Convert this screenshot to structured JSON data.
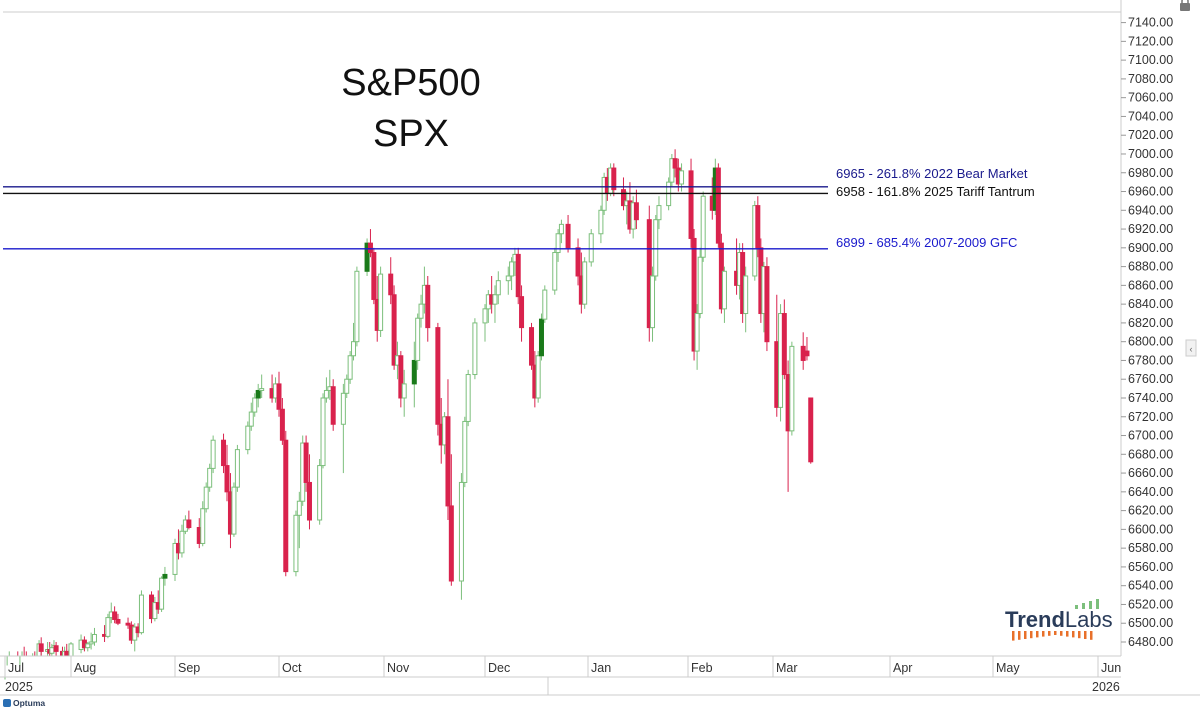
{
  "chart_data": {
    "type": "candlestick",
    "title": "S&P500",
    "subtitle": "SPX",
    "ylim": [
      6460,
      7160
    ],
    "y_ticks": [
      6480,
      6500,
      6520,
      6540,
      6560,
      6580,
      6600,
      6620,
      6640,
      6660,
      6680,
      6700,
      6720,
      6740,
      6760,
      6780,
      6800,
      6820,
      6840,
      6860,
      6880,
      6900,
      6920,
      6940,
      6960,
      6980,
      7000,
      7020,
      7040,
      7060,
      7080,
      7100,
      7120,
      7140
    ],
    "y_tick_labels": [
      "6480.00",
      "6500.00",
      "6520.00",
      "6540.00",
      "6560.00",
      "6580.00",
      "6600.00",
      "6620.00",
      "6640.00",
      "6660.00",
      "6680.00",
      "6700.00",
      "6720.00",
      "6740.00",
      "6760.00",
      "6780.00",
      "6800.00",
      "6820.00",
      "6840.00",
      "6860.00",
      "6880.00",
      "6900.00",
      "6920.00",
      "6940.00",
      "6960.00",
      "6980.00",
      "7000.00",
      "7020.00",
      "7040.00",
      "7060.00",
      "7080.00",
      "7100.00",
      "7120.00",
      "7140.00"
    ],
    "x_months": [
      "Jul",
      "Aug",
      "Sep",
      "Oct",
      "Nov",
      "Dec",
      "Jan",
      "Feb",
      "Mar",
      "Apr",
      "May",
      "Jun"
    ],
    "x_years": [
      "2025",
      "2026"
    ],
    "colors": {
      "up": "#7cbf7c",
      "up_fill": "#ffffff",
      "down": "#d9224d",
      "up_solid": "#1a7a1a",
      "grid": "#e6e6e6",
      "axis": "#cccccc"
    },
    "levels": [
      {
        "value": 6965,
        "label": "6965 - 261.8% 2022 Bear Market",
        "color": "#1a1a8c"
      },
      {
        "value": 6958,
        "label": "6958 - 161.8% 2025 Tariff Tantrum",
        "color": "#111111"
      },
      {
        "value": 6899,
        "label": "6899 - 685.4% 2007-2009 GFC",
        "color": "#1a1acc"
      }
    ],
    "candles": [
      [
        "2025-07-01",
        6410,
        6440,
        6405,
        6430
      ],
      [
        "2025-07-02",
        6428,
        6455,
        6420,
        6445
      ],
      [
        "2025-07-03",
        6440,
        6470,
        6435,
        6465
      ],
      [
        "2025-07-07",
        6460,
        6470,
        6440,
        6445
      ],
      [
        "2025-07-08",
        6445,
        6455,
        6440,
        6448
      ],
      [
        "2025-07-09",
        6448,
        6470,
        6445,
        6465
      ],
      [
        "2025-07-10",
        6465,
        6475,
        6455,
        6460
      ],
      [
        "2025-07-11",
        6460,
        6470,
        6450,
        6455
      ],
      [
        "2025-07-14",
        6455,
        6468,
        6450,
        6462
      ],
      [
        "2025-07-15",
        6462,
        6470,
        6445,
        6448
      ],
      [
        "2025-07-16",
        6448,
        6470,
        6440,
        6465
      ],
      [
        "2025-07-17",
        6465,
        6482,
        6460,
        6478
      ],
      [
        "2025-07-18",
        6478,
        6485,
        6465,
        6470
      ],
      [
        "2025-07-21",
        6470,
        6480,
        6465,
        6472
      ],
      [
        "2025-07-22",
        6472,
        6480,
        6462,
        6468
      ],
      [
        "2025-07-23",
        6468,
        6478,
        6460,
        6474
      ],
      [
        "2025-07-24",
        6474,
        6482,
        6468,
        6476
      ],
      [
        "2025-07-25",
        6476,
        6480,
        6465,
        6470
      ],
      [
        "2025-07-28",
        6470,
        6475,
        6455,
        6458
      ],
      [
        "2025-07-29",
        6458,
        6475,
        6455,
        6470
      ],
      [
        "2025-07-30",
        6470,
        6478,
        6455,
        6460
      ],
      [
        "2025-07-31",
        6460,
        6472,
        6445,
        6448
      ],
      [
        "2025-08-01",
        6448,
        6480,
        6445,
        6478
      ],
      [
        "2025-08-04",
        6472,
        6488,
        6468,
        6482
      ],
      [
        "2025-08-05",
        6482,
        6486,
        6470,
        6474
      ],
      [
        "2025-08-06",
        6474,
        6480,
        6470,
        6478
      ],
      [
        "2025-08-07",
        6478,
        6490,
        6472,
        6480
      ],
      [
        "2025-08-08",
        6480,
        6495,
        6476,
        6488
      ],
      [
        "2025-08-11",
        6488,
        6498,
        6480,
        6486
      ],
      [
        "2025-08-12",
        6486,
        6510,
        6484,
        6506
      ],
      [
        "2025-08-13",
        6506,
        6522,
        6500,
        6512
      ],
      [
        "2025-08-14",
        6512,
        6518,
        6500,
        6504
      ],
      [
        "2025-08-15",
        6504,
        6510,
        6498,
        6500
      ],
      [
        "2025-08-18",
        6500,
        6506,
        6494,
        6498
      ],
      [
        "2025-08-19",
        6498,
        6502,
        6478,
        6482
      ],
      [
        "2025-08-20",
        6482,
        6500,
        6470,
        6496
      ],
      [
        "2025-08-21",
        6496,
        6500,
        6485,
        6490
      ],
      [
        "2025-08-22",
        6490,
        6535,
        6488,
        6530
      ],
      [
        "2025-08-25",
        6530,
        6534,
        6500,
        6505
      ],
      [
        "2025-08-26",
        6505,
        6528,
        6502,
        6522
      ],
      [
        "2025-08-27",
        6522,
        6535,
        6510,
        6515
      ],
      [
        "2025-08-28",
        6515,
        6550,
        6512,
        6548
      ],
      [
        "2025-08-29",
        6548,
        6560,
        6540,
        6552
      ],
      [
        "2025-09-01",
        6552,
        6590,
        6545,
        6585
      ],
      [
        "2025-09-02",
        6585,
        6600,
        6568,
        6575
      ],
      [
        "2025-09-03",
        6575,
        6605,
        6570,
        6598
      ],
      [
        "2025-09-04",
        6598,
        6615,
        6595,
        6610
      ],
      [
        "2025-09-05",
        6610,
        6620,
        6600,
        6602
      ],
      [
        "2025-09-08",
        6602,
        6612,
        6580,
        6585
      ],
      [
        "2025-09-09",
        6585,
        6630,
        6582,
        6622
      ],
      [
        "2025-09-10",
        6622,
        6650,
        6618,
        6645
      ],
      [
        "2025-09-11",
        6645,
        6670,
        6640,
        6665
      ],
      [
        "2025-09-12",
        6665,
        6700,
        6660,
        6695
      ],
      [
        "2025-09-15",
        6695,
        6702,
        6660,
        6668
      ],
      [
        "2025-09-16",
        6668,
        6690,
        6630,
        6640
      ],
      [
        "2025-09-17",
        6640,
        6660,
        6580,
        6595
      ],
      [
        "2025-09-18",
        6595,
        6650,
        6592,
        6645
      ],
      [
        "2025-09-19",
        6645,
        6690,
        6640,
        6685
      ],
      [
        "2025-09-22",
        6685,
        6715,
        6680,
        6710
      ],
      [
        "2025-09-23",
        6710,
        6735,
        6705,
        6725
      ],
      [
        "2025-09-24",
        6725,
        6745,
        6720,
        6740
      ],
      [
        "2025-09-25",
        6740,
        6755,
        6730,
        6748
      ],
      [
        "2025-09-26",
        6748,
        6765,
        6740,
        6750
      ],
      [
        "2025-09-29",
        6750,
        6765,
        6735,
        6740
      ],
      [
        "2025-09-30",
        6740,
        6762,
        6735,
        6755
      ],
      [
        "2025-10-01",
        6755,
        6768,
        6720,
        6728
      ],
      [
        "2025-10-02",
        6728,
        6740,
        6690,
        6695
      ],
      [
        "2025-10-03",
        6695,
        6705,
        6550,
        6555
      ],
      [
        "2025-10-06",
        6555,
        6620,
        6550,
        6615
      ],
      [
        "2025-10-07",
        6615,
        6640,
        6580,
        6630
      ],
      [
        "2025-10-08",
        6630,
        6700,
        6625,
        6692
      ],
      [
        "2025-10-09",
        6692,
        6700,
        6640,
        6650
      ],
      [
        "2025-10-10",
        6650,
        6680,
        6600,
        6610
      ],
      [
        "2025-10-13",
        6610,
        6675,
        6605,
        6668
      ],
      [
        "2025-10-14",
        6668,
        6745,
        6665,
        6740
      ],
      [
        "2025-10-15",
        6740,
        6762,
        6735,
        6748
      ],
      [
        "2025-10-16",
        6748,
        6770,
        6738,
        6752
      ],
      [
        "2025-10-17",
        6752,
        6760,
        6705,
        6712
      ],
      [
        "2025-10-20",
        6712,
        6755,
        6660,
        6745
      ],
      [
        "2025-10-21",
        6745,
        6765,
        6740,
        6760
      ],
      [
        "2025-10-22",
        6760,
        6790,
        6755,
        6785
      ],
      [
        "2025-10-23",
        6785,
        6820,
        6780,
        6800
      ],
      [
        "2025-10-24",
        6800,
        6880,
        6795,
        6875
      ],
      [
        "2025-10-27",
        6875,
        6910,
        6870,
        6905
      ],
      [
        "2025-10-28",
        6905,
        6920,
        6890,
        6895
      ],
      [
        "2025-10-29",
        6895,
        6900,
        6840,
        6845
      ],
      [
        "2025-10-30",
        6845,
        6870,
        6800,
        6812
      ],
      [
        "2025-10-31",
        6812,
        6880,
        6805,
        6872
      ],
      [
        "2025-11-03",
        6872,
        6890,
        6840,
        6850
      ],
      [
        "2025-11-04",
        6850,
        6860,
        6770,
        6775
      ],
      [
        "2025-11-05",
        6775,
        6800,
        6760,
        6785
      ],
      [
        "2025-11-06",
        6785,
        6790,
        6730,
        6740
      ],
      [
        "2025-11-07",
        6740,
        6770,
        6720,
        6755
      ],
      [
        "2025-11-10",
        6755,
        6800,
        6730,
        6780
      ],
      [
        "2025-11-11",
        6780,
        6830,
        6770,
        6825
      ],
      [
        "2025-11-12",
        6825,
        6850,
        6815,
        6840
      ],
      [
        "2025-11-13",
        6840,
        6880,
        6830,
        6860
      ],
      [
        "2025-11-14",
        6860,
        6870,
        6800,
        6815
      ],
      [
        "2025-11-17",
        6815,
        6820,
        6700,
        6712
      ],
      [
        "2025-11-18",
        6712,
        6740,
        6670,
        6690
      ],
      [
        "2025-11-19",
        6690,
        6725,
        6680,
        6720
      ],
      [
        "2025-11-20",
        6720,
        6760,
        6610,
        6625
      ],
      [
        "2025-11-21",
        6625,
        6680,
        6540,
        6545
      ],
      [
        "2025-11-24",
        6545,
        6660,
        6525,
        6650
      ],
      [
        "2025-11-25",
        6650,
        6720,
        6645,
        6715
      ],
      [
        "2025-11-26",
        6715,
        6770,
        6710,
        6765
      ],
      [
        "2025-11-28",
        6765,
        6825,
        6760,
        6820
      ],
      [
        "2025-12-01",
        6820,
        6840,
        6800,
        6835
      ],
      [
        "2025-12-02",
        6835,
        6855,
        6820,
        6850
      ],
      [
        "2025-12-03",
        6850,
        6870,
        6830,
        6840
      ],
      [
        "2025-12-04",
        6840,
        6860,
        6820,
        6850
      ],
      [
        "2025-12-05",
        6850,
        6875,
        6840,
        6865
      ],
      [
        "2025-12-08",
        6865,
        6880,
        6850,
        6870
      ],
      [
        "2025-12-09",
        6870,
        6890,
        6855,
        6885
      ],
      [
        "2025-12-10",
        6885,
        6900,
        6870,
        6893
      ],
      [
        "2025-12-11",
        6893,
        6900,
        6840,
        6848
      ],
      [
        "2025-12-12",
        6848,
        6860,
        6800,
        6815
      ],
      [
        "2025-12-15",
        6815,
        6820,
        6770,
        6775
      ],
      [
        "2025-12-16",
        6775,
        6790,
        6730,
        6740
      ],
      [
        "2025-12-17",
        6740,
        6790,
        6735,
        6785
      ],
      [
        "2025-12-18",
        6785,
        6830,
        6780,
        6824
      ],
      [
        "2025-12-19",
        6824,
        6860,
        6820,
        6855
      ],
      [
        "2025-12-22",
        6855,
        6900,
        6850,
        6895
      ],
      [
        "2025-12-23",
        6895,
        6920,
        6885,
        6915
      ],
      [
        "2025-12-24",
        6915,
        6930,
        6905,
        6925
      ],
      [
        "2025-12-26",
        6925,
        6935,
        6895,
        6900
      ],
      [
        "2025-12-29",
        6900,
        6910,
        6860,
        6870
      ],
      [
        "2025-12-30",
        6870,
        6895,
        6830,
        6840
      ],
      [
        "2025-12-31",
        6840,
        6890,
        6835,
        6885
      ],
      [
        "2026-01-02",
        6885,
        6920,
        6880,
        6915
      ],
      [
        "2026-01-05",
        6915,
        6945,
        6905,
        6940
      ],
      [
        "2026-01-06",
        6940,
        6980,
        6935,
        6975
      ],
      [
        "2026-01-07",
        6975,
        6985,
        6950,
        6958
      ],
      [
        "2026-01-08",
        6958,
        6990,
        6955,
        6985
      ],
      [
        "2026-01-09",
        6985,
        6990,
        6955,
        6962
      ],
      [
        "2026-01-12",
        6962,
        6975,
        6940,
        6945
      ],
      [
        "2026-01-13",
        6945,
        6960,
        6925,
        6950
      ],
      [
        "2026-01-14",
        6950,
        6970,
        6915,
        6920
      ],
      [
        "2026-01-15",
        6920,
        6955,
        6910,
        6948
      ],
      [
        "2026-01-16",
        6948,
        6962,
        6920,
        6930
      ],
      [
        "2026-01-20",
        6930,
        6945,
        6800,
        6815
      ],
      [
        "2026-01-21",
        6815,
        6880,
        6800,
        6870
      ],
      [
        "2026-01-22",
        6870,
        6935,
        6865,
        6930
      ],
      [
        "2026-01-23",
        6930,
        6955,
        6920,
        6945
      ],
      [
        "2026-01-26",
        6945,
        6975,
        6940,
        6970
      ],
      [
        "2026-01-27",
        6970,
        7000,
        6965,
        6995
      ],
      [
        "2026-01-28",
        6995,
        7005,
        6975,
        6985
      ],
      [
        "2026-01-29",
        6985,
        6995,
        6960,
        6968
      ],
      [
        "2026-01-30",
        6968,
        6990,
        6960,
        6982
      ],
      [
        "2026-02-02",
        6982,
        6995,
        6900,
        6910
      ],
      [
        "2026-02-03",
        6910,
        6920,
        6780,
        6790
      ],
      [
        "2026-02-04",
        6790,
        6840,
        6770,
        6830
      ],
      [
        "2026-02-05",
        6830,
        6900,
        6825,
        6890
      ],
      [
        "2026-02-06",
        6890,
        6960,
        6885,
        6955
      ],
      [
        "2026-02-09",
        6955,
        6975,
        6930,
        6940
      ],
      [
        "2026-02-10",
        6940,
        6995,
        6935,
        6985
      ],
      [
        "2026-02-11",
        6985,
        6990,
        6900,
        6905
      ],
      [
        "2026-02-12",
        6905,
        6915,
        6830,
        6835
      ],
      [
        "2026-02-13",
        6835,
        6880,
        6820,
        6875
      ],
      [
        "2026-02-17",
        6875,
        6910,
        6850,
        6860
      ],
      [
        "2026-02-18",
        6860,
        6905,
        6845,
        6895
      ],
      [
        "2026-02-19",
        6895,
        6905,
        6820,
        6830
      ],
      [
        "2026-02-20",
        6830,
        6880,
        6810,
        6870
      ],
      [
        "2026-02-23",
        6870,
        6950,
        6865,
        6945
      ],
      [
        "2026-02-24",
        6945,
        6955,
        6890,
        6900
      ],
      [
        "2026-02-25",
        6900,
        6910,
        6820,
        6830
      ],
      [
        "2026-02-26",
        6830,
        6885,
        6810,
        6880
      ],
      [
        "2026-02-27",
        6880,
        6890,
        6790,
        6800
      ],
      [
        "2026-03-02",
        6800,
        6850,
        6720,
        6730
      ],
      [
        "2026-03-03",
        6730,
        6840,
        6715,
        6830
      ],
      [
        "2026-03-04",
        6830,
        6845,
        6760,
        6765
      ],
      [
        "2026-03-05",
        6765,
        6780,
        6640,
        6705
      ],
      [
        "2026-03-06",
        6705,
        6800,
        6700,
        6795
      ],
      [
        "2026-03-09",
        6795,
        6810,
        6770,
        6780
      ],
      [
        "2026-03-10",
        6790,
        6805,
        6780,
        6785
      ],
      [
        "2026-03-11",
        6740,
        6740,
        6670,
        6672
      ]
    ]
  },
  "branding": {
    "logo_text_bold": "Trend",
    "logo_text": "Labs",
    "footer": "Optuma"
  }
}
